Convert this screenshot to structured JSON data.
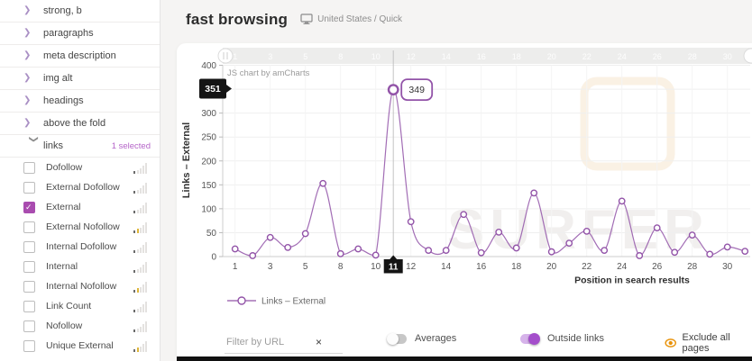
{
  "header": {
    "title": "fast browsing",
    "context": "United States / Quick"
  },
  "sidebar": {
    "sections": [
      {
        "label": "strong, b",
        "expanded": false
      },
      {
        "label": "paragraphs",
        "expanded": false
      },
      {
        "label": "meta description",
        "expanded": false
      },
      {
        "label": "img alt",
        "expanded": false
      },
      {
        "label": "headings",
        "expanded": false
      },
      {
        "label": "above the fold",
        "expanded": false
      },
      {
        "label": "links",
        "expanded": true,
        "badge": "1 selected"
      }
    ],
    "items": [
      {
        "label": "Dofollow",
        "checked": false,
        "spark": "gray"
      },
      {
        "label": "External Dofollow",
        "checked": false,
        "spark": "gray"
      },
      {
        "label": "External",
        "checked": true,
        "spark": "gray"
      },
      {
        "label": "External Nofollow",
        "checked": false,
        "spark": "yellow"
      },
      {
        "label": "Internal Dofollow",
        "checked": false,
        "spark": "gray"
      },
      {
        "label": "Internal",
        "checked": false,
        "spark": "gray"
      },
      {
        "label": "Internal Nofollow",
        "checked": false,
        "spark": "yellow"
      },
      {
        "label": "Link Count",
        "checked": false,
        "spark": "gray"
      },
      {
        "label": "Nofollow",
        "checked": false,
        "spark": "gray"
      },
      {
        "label": "Unique External",
        "checked": false,
        "spark": "yellow"
      }
    ]
  },
  "chart_data": {
    "type": "line",
    "series_name": "Links – External",
    "categories": [
      1,
      2,
      3,
      4,
      5,
      6,
      8,
      9,
      10,
      11,
      12,
      13,
      14,
      15,
      16,
      17,
      18,
      19,
      20,
      21,
      22,
      23,
      24,
      25,
      26,
      27,
      28,
      29,
      30,
      31
    ],
    "values": [
      16,
      2,
      40,
      19,
      48,
      153,
      6,
      16,
      3,
      349,
      73,
      13,
      13,
      88,
      8,
      51,
      18,
      133,
      10,
      28,
      53,
      13,
      116,
      2,
      60,
      9,
      45,
      5,
      20,
      11
    ],
    "selected_category": 11,
    "selected_value": 349,
    "axis_cursor_value": 351,
    "x_tick_labels": [
      "1",
      "3",
      "5",
      "8",
      "10",
      "11",
      "12",
      "14",
      "16",
      "18",
      "20",
      "22",
      "24",
      "26",
      "28",
      "30"
    ],
    "y_ticks": [
      0,
      50,
      100,
      150,
      200,
      250,
      300,
      400
    ],
    "ylim": [
      0,
      400
    ],
    "xlabel": "Position in search results",
    "ylabel": "Links – External",
    "legend": [
      "Links – External"
    ],
    "legend_position": "bottom-left",
    "grid": true,
    "credit": "JS chart by amCharts",
    "brand_watermark": "SURFER",
    "line_color": "#9253a8",
    "selected_label_bg": "#141414"
  },
  "controls": {
    "filter": {
      "placeholder": "Filter by URL",
      "value": "",
      "clear_icon": "×"
    },
    "toggles": [
      {
        "label": "Averages",
        "on": false
      },
      {
        "label": "Outside links",
        "on": true
      }
    ],
    "exclude": {
      "label": "Exclude all pages",
      "icon": "eye-icon",
      "color": "#e8920a"
    }
  }
}
